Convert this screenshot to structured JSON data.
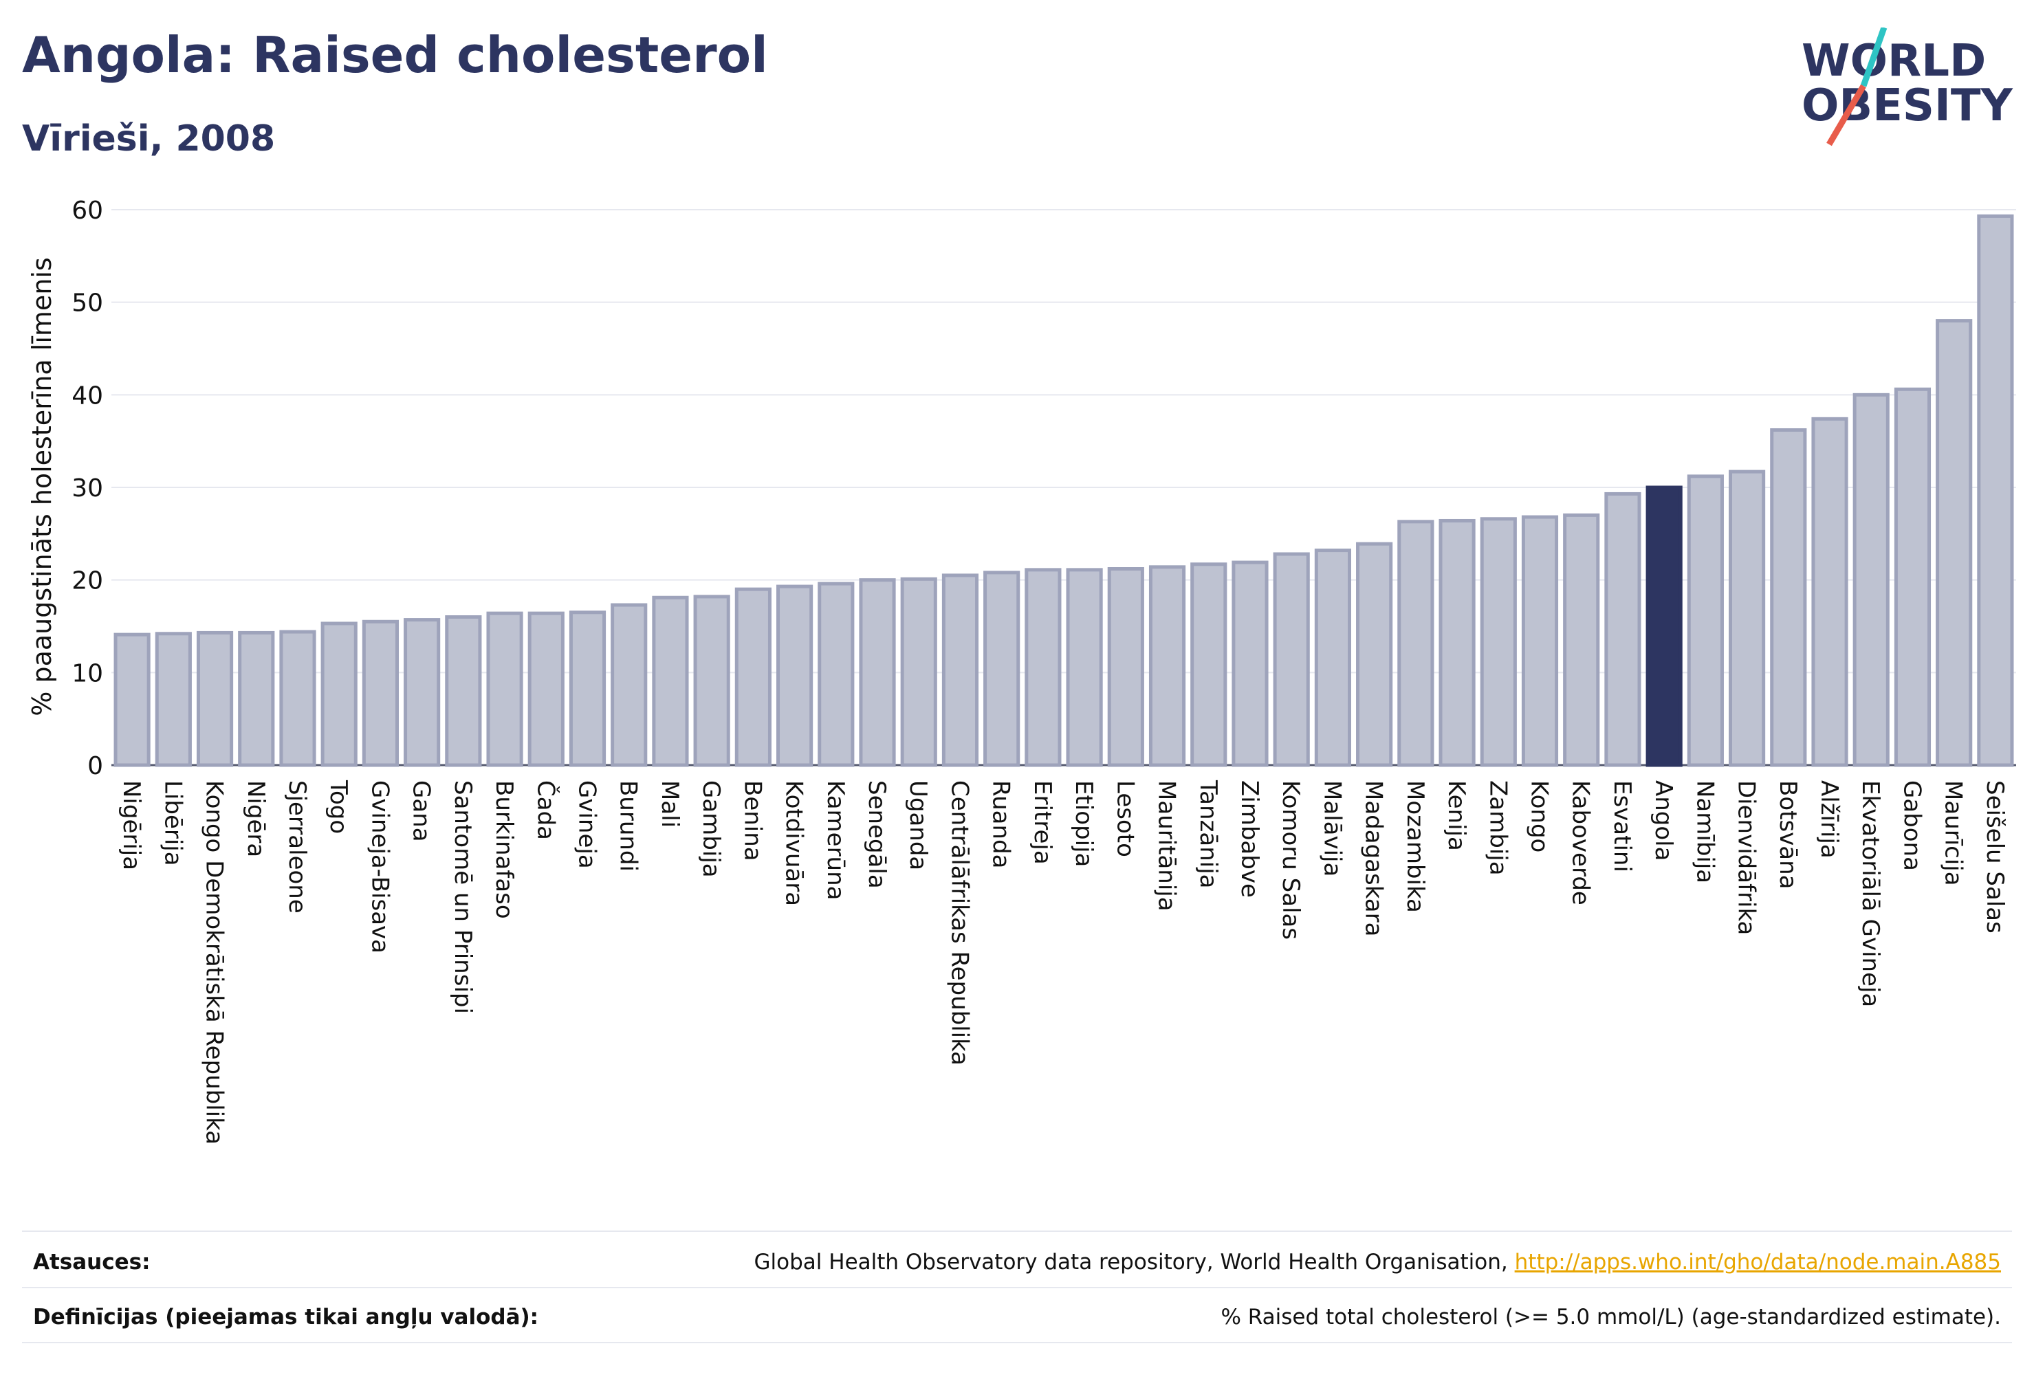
{
  "header": {
    "title": "Angola: Raised cholesterol",
    "subtitle": "Vīrieši, 2008"
  },
  "logo": {
    "line1": "WORLD",
    "line2": "OBESITY",
    "slash_colors": [
      "#2ec4c4",
      "#e85c4a"
    ]
  },
  "colors": {
    "bar": "#bec2d1",
    "bar_stroke": "#9ea3bb",
    "highlight": "#2d3561",
    "text": "#2d3561",
    "grid": "#e6e8ef"
  },
  "chart_data": {
    "type": "bar",
    "ylabel": "% paaugstināts holesterīna līmenis",
    "ylim": [
      0,
      60
    ],
    "yticks": [
      0,
      10,
      20,
      30,
      40,
      50,
      60
    ],
    "highlight": "Angola",
    "categories": [
      "Nigērija",
      "Libērija",
      "Kongo Demokrātiskā Republika",
      "Nigēra",
      "Sjerraleone",
      "Togo",
      "Gvineja-Bisava",
      "Gana",
      "Santomē un Prinsipi",
      "Burkinafaso",
      "Čada",
      "Gvineja",
      "Burundi",
      "Mali",
      "Gambija",
      "Benina",
      "Kotdivuāra",
      "Kamerūna",
      "Senegāla",
      "Uganda",
      "Centrālāfrikas Republika",
      "Ruanda",
      "Eritreja",
      "Etiopija",
      "Lesoto",
      "Mauritānija",
      "Tanzānija",
      "Zimbabve",
      "Komoru Salas",
      "Malāvija",
      "Madagaskara",
      "Mozambika",
      "Kenija",
      "Zambija",
      "Kongo",
      "Kaboverde",
      "Esvatini",
      "Angola",
      "Namībija",
      "Dienvidāfrika",
      "Botsvāna",
      "Alžīrija",
      "Ekvatoriālā Gvineja",
      "Gabona",
      "Maurīcija",
      "Seišelu Salas"
    ],
    "values": [
      14.1,
      14.2,
      14.3,
      14.3,
      14.4,
      15.3,
      15.5,
      15.7,
      16.0,
      16.4,
      16.4,
      16.5,
      17.3,
      18.1,
      18.2,
      19.0,
      19.3,
      19.6,
      20.0,
      20.1,
      20.5,
      20.8,
      21.1,
      21.1,
      21.2,
      21.4,
      21.7,
      21.9,
      22.8,
      23.2,
      23.9,
      26.3,
      26.4,
      26.6,
      26.8,
      27.0,
      29.3,
      30.0,
      31.2,
      31.7,
      36.2,
      37.4,
      40.0,
      40.6,
      48.0,
      59.3
    ]
  },
  "footer": {
    "sources_label": "Atsauces:",
    "sources_text": "Global Health Observatory data repository, World Health Organisation, ",
    "sources_link": "http://apps.who.int/gho/data/node.main.A885",
    "definitions_label": "Definīcijas (pieejamas tikai angļu valodā):",
    "definitions_text": "% Raised total cholesterol (>= 5.0 mmol/L) (age-standardized estimate)."
  }
}
